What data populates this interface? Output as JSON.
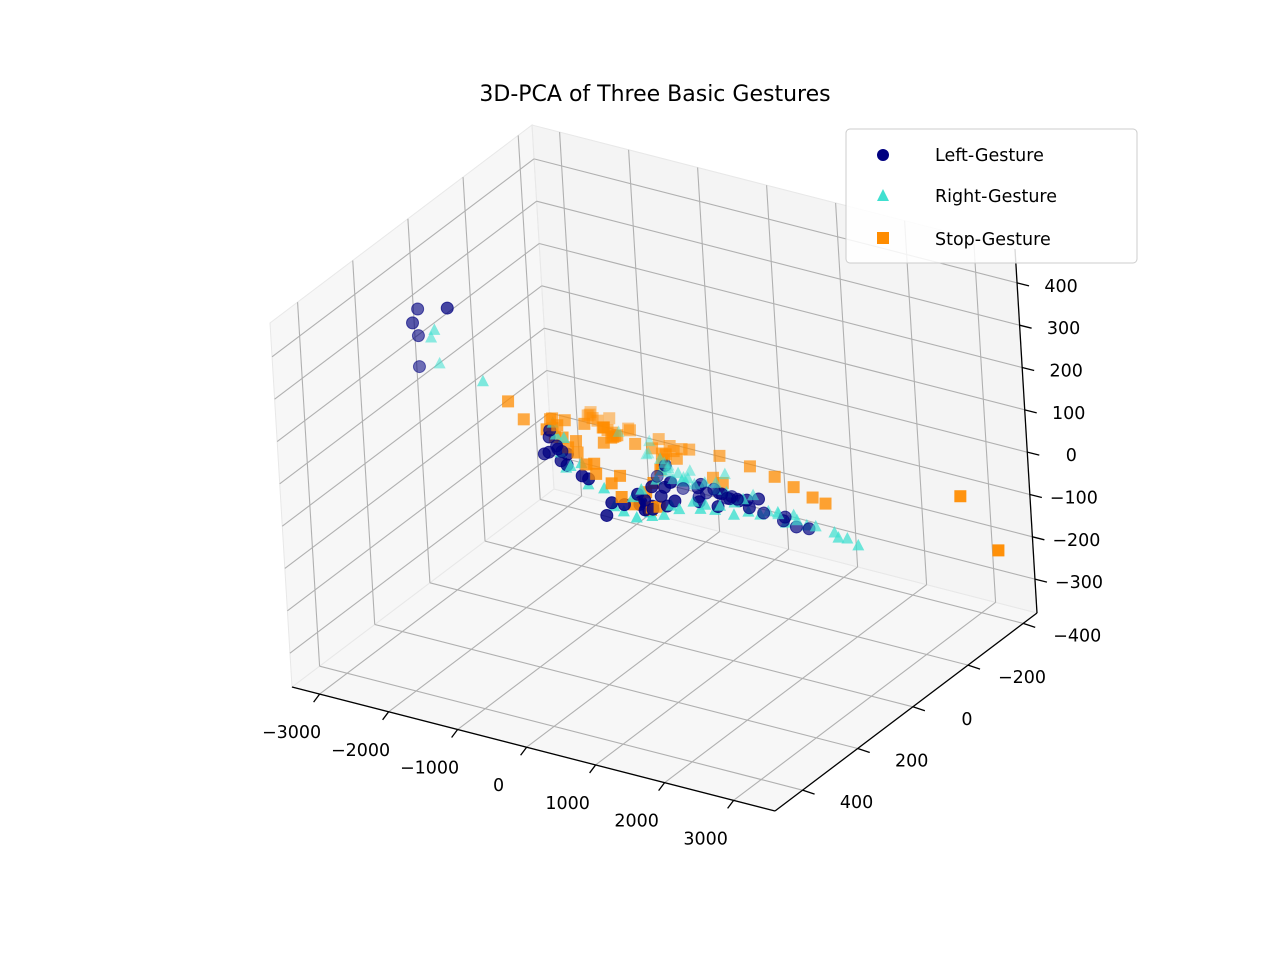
{
  "chart_data": {
    "type": "scatter",
    "projection": "3d",
    "title": "3D-PCA of Three Basic Gestures",
    "grid": true,
    "legend_position": "top-right",
    "x_ticks": [
      "−3000",
      "−2000",
      "−1000",
      "0",
      "1000",
      "2000",
      "3000"
    ],
    "y_ticks": [
      "−400",
      "−200",
      "0",
      "200",
      "400"
    ],
    "z_ticks": [
      "−300",
      "−200",
      "−100",
      "0",
      "100",
      "200",
      "300",
      "400"
    ],
    "xlim": [
      -3400,
      3600
    ],
    "ylim": [
      -450,
      500
    ],
    "zlim": [
      -380,
      480
    ],
    "series": [
      {
        "name": "Left-Gesture",
        "marker": "circle",
        "color": "#000080",
        "points": [
          [
            -3000,
            100,
            300
          ],
          [
            -2700,
            150,
            370
          ],
          [
            -2500,
            200,
            340
          ],
          [
            -2900,
            0,
            290
          ],
          [
            -2300,
            250,
            300
          ],
          [
            -1500,
            0,
            60
          ],
          [
            -1200,
            50,
            60
          ],
          [
            -1000,
            80,
            70
          ],
          [
            -1600,
            -20,
            30
          ],
          [
            -1700,
            -40,
            -20
          ],
          [
            -1600,
            0,
            0
          ],
          [
            -1700,
            -80,
            -60
          ],
          [
            -1650,
            -60,
            -20
          ],
          [
            -1700,
            -100,
            -80
          ],
          [
            -1600,
            -80,
            -40
          ],
          [
            -1700,
            -150,
            -130
          ],
          [
            -1650,
            -160,
            -140
          ],
          [
            -1500,
            -200,
            -210
          ],
          [
            -1500,
            -180,
            -230
          ],
          [
            -1400,
            -220,
            -220
          ],
          [
            -1300,
            -250,
            -230
          ],
          [
            -1200,
            -230,
            -210
          ],
          [
            -1100,
            -220,
            -220
          ],
          [
            -1300,
            -280,
            -260
          ],
          [
            -1200,
            -270,
            -240
          ],
          [
            -900,
            -200,
            -200
          ],
          [
            -600,
            -180,
            -170
          ],
          [
            -400,
            -160,
            -140
          ],
          [
            0,
            -150,
            -120
          ],
          [
            400,
            -120,
            -100
          ],
          [
            800,
            -100,
            -60
          ],
          [
            1000,
            -80,
            -40
          ],
          [
            1200,
            0,
            10
          ],
          [
            1300,
            50,
            40
          ],
          [
            1400,
            100,
            80
          ],
          [
            1500,
            150,
            120
          ],
          [
            1600,
            200,
            140
          ],
          [
            1700,
            250,
            160
          ],
          [
            1600,
            280,
            190
          ],
          [
            1500,
            300,
            210
          ],
          [
            1400,
            320,
            230
          ],
          [
            2000,
            100,
            60
          ],
          [
            2200,
            80,
            40
          ],
          [
            2300,
            60,
            20
          ],
          [
            2400,
            40,
            10
          ],
          [
            1800,
            160,
            120
          ],
          [
            1900,
            200,
            140
          ],
          [
            1200,
            -40,
            -30
          ],
          [
            -200,
            -80,
            -60
          ],
          [
            -600,
            -130,
            -100
          ],
          [
            0,
            -40,
            20
          ],
          [
            -300,
            -90,
            -90
          ],
          [
            800,
            40,
            40
          ],
          [
            1100,
            100,
            90
          ],
          [
            1300,
            -50,
            -10
          ],
          [
            -900,
            -150,
            -140
          ],
          [
            -800,
            -150,
            -150
          ],
          [
            600,
            -80,
            -40
          ],
          [
            2100,
            50,
            30
          ],
          [
            1000,
            180,
            130
          ]
        ]
      },
      {
        "name": "Right-Gesture",
        "marker": "triangle",
        "color": "#40e0d0",
        "points": [
          [
            -2600,
            120,
            310
          ],
          [
            -2400,
            180,
            330
          ],
          [
            -2000,
            250,
            320
          ],
          [
            -2100,
            80,
            190
          ],
          [
            -1500,
            -20,
            40
          ],
          [
            -1300,
            0,
            50
          ],
          [
            -1700,
            -80,
            -40
          ],
          [
            -1650,
            -100,
            -80
          ],
          [
            -1700,
            -150,
            -100
          ],
          [
            -1700,
            -170,
            -160
          ],
          [
            -1600,
            -200,
            -180
          ],
          [
            -1550,
            -220,
            -230
          ],
          [
            -1500,
            -240,
            -250
          ],
          [
            -1400,
            -260,
            -270
          ],
          [
            -1200,
            -260,
            -250
          ],
          [
            -1000,
            -220,
            -230
          ],
          [
            -700,
            -190,
            -200
          ],
          [
            -500,
            -170,
            -160
          ],
          [
            -300,
            -150,
            -150
          ],
          [
            0,
            -130,
            -110
          ],
          [
            300,
            -100,
            -90
          ],
          [
            600,
            -80,
            -70
          ],
          [
            900,
            -60,
            -40
          ],
          [
            1200,
            -20,
            0
          ],
          [
            1300,
            60,
            60
          ],
          [
            1400,
            120,
            100
          ],
          [
            1500,
            180,
            150
          ],
          [
            1600,
            240,
            180
          ],
          [
            1700,
            300,
            230
          ],
          [
            1800,
            360,
            260
          ],
          [
            1900,
            400,
            300
          ],
          [
            2000,
            420,
            330
          ],
          [
            1800,
            440,
            360
          ],
          [
            1600,
            400,
            330
          ],
          [
            1500,
            330,
            280
          ],
          [
            2100,
            250,
            230
          ],
          [
            2200,
            180,
            150
          ],
          [
            2300,
            120,
            80
          ],
          [
            2400,
            80,
            50
          ],
          [
            2500,
            40,
            20
          ],
          [
            2600,
            0,
            -10
          ],
          [
            2700,
            -20,
            -30
          ],
          [
            2100,
            20,
            20
          ],
          [
            1900,
            60,
            40
          ],
          [
            1700,
            -20,
            -10
          ],
          [
            -100,
            -50,
            0
          ],
          [
            -400,
            -100,
            -60
          ],
          [
            -800,
            -140,
            -120
          ],
          [
            -1100,
            -180,
            -170
          ],
          [
            400,
            0,
            20
          ],
          [
            700,
            60,
            60
          ],
          [
            1000,
            120,
            110
          ],
          [
            1200,
            200,
            170
          ],
          [
            1400,
            280,
            230
          ],
          [
            1600,
            340,
            280
          ],
          [
            1800,
            300,
            250
          ],
          [
            2000,
            260,
            210
          ],
          [
            2200,
            0,
            -10
          ],
          [
            2400,
            -60,
            -60
          ],
          [
            2600,
            -80,
            -80
          ],
          [
            -200,
            -200,
            -170
          ],
          [
            100,
            -180,
            -150
          ],
          [
            500,
            -150,
            -130
          ],
          [
            800,
            -130,
            -100
          ],
          [
            1100,
            -100,
            -80
          ],
          [
            1300,
            -140,
            -110
          ],
          [
            -1800,
            -120,
            -100
          ],
          [
            -1450,
            0,
            80
          ],
          [
            1550,
            480,
            420
          ],
          [
            1950,
            470,
            410
          ]
        ]
      },
      {
        "name": "Stop-Gesture",
        "marker": "square",
        "color": "#ff8c00",
        "points": [
          [
            -2300,
            -50,
            70
          ],
          [
            -2000,
            -30,
            50
          ],
          [
            -1800,
            -60,
            20
          ],
          [
            -1700,
            -90,
            -10
          ],
          [
            -1400,
            20,
            100
          ],
          [
            -1200,
            60,
            130
          ],
          [
            -1100,
            40,
            120
          ],
          [
            -900,
            20,
            110
          ],
          [
            -700,
            0,
            100
          ],
          [
            -1500,
            -60,
            -10
          ],
          [
            -1450,
            -80,
            -30
          ],
          [
            -1500,
            -120,
            -80
          ],
          [
            -1450,
            -140,
            -110
          ],
          [
            -1400,
            -180,
            -150
          ],
          [
            -1350,
            -200,
            -190
          ],
          [
            -1300,
            -230,
            -220
          ],
          [
            -1200,
            -260,
            -240
          ],
          [
            -1100,
            -240,
            -230
          ],
          [
            -1000,
            -220,
            -210
          ],
          [
            -800,
            -200,
            -190
          ],
          [
            -1300,
            -100,
            -60
          ],
          [
            -1100,
            -140,
            -100
          ],
          [
            -800,
            -20,
            50
          ],
          [
            -600,
            0,
            80
          ],
          [
            -400,
            40,
            110
          ],
          [
            -200,
            80,
            140
          ],
          [
            0,
            120,
            170
          ],
          [
            100,
            160,
            200
          ],
          [
            200,
            200,
            230
          ],
          [
            300,
            240,
            260
          ],
          [
            400,
            280,
            300
          ],
          [
            500,
            320,
            330
          ],
          [
            600,
            360,
            360
          ],
          [
            800,
            400,
            390
          ],
          [
            900,
            420,
            410
          ],
          [
            1000,
            380,
            380
          ],
          [
            1100,
            340,
            340
          ],
          [
            1200,
            260,
            280
          ],
          [
            1300,
            180,
            220
          ],
          [
            1400,
            100,
            170
          ],
          [
            1500,
            20,
            110
          ],
          [
            1600,
            -40,
            60
          ],
          [
            1700,
            -80,
            20
          ],
          [
            1800,
            -120,
            -20
          ],
          [
            1900,
            -140,
            -40
          ],
          [
            700,
            240,
            270
          ],
          [
            500,
            120,
            160
          ],
          [
            300,
            40,
            100
          ],
          [
            100,
            -20,
            60
          ],
          [
            -100,
            -60,
            20
          ],
          [
            -300,
            -100,
            -20
          ],
          [
            -500,
            -140,
            -60
          ],
          [
            -700,
            -160,
            -110
          ],
          [
            -900,
            -180,
            -150
          ],
          [
            1000,
            0,
            40
          ],
          [
            1200,
            80,
            100
          ],
          [
            -200,
            120,
            180
          ],
          [
            0,
            60,
            120
          ],
          [
            -1300,
            20,
            90
          ],
          [
            -1600,
            -40,
            20
          ],
          [
            3000,
            -350,
            -80
          ],
          [
            3300,
            -400,
            -220
          ],
          [
            1100,
            200,
            230
          ],
          [
            900,
            140,
            180
          ],
          [
            600,
            60,
            110
          ],
          [
            -1500,
            -10,
            60
          ],
          [
            -1250,
            -30,
            30
          ],
          [
            1400,
            230,
            250
          ]
        ]
      }
    ]
  }
}
